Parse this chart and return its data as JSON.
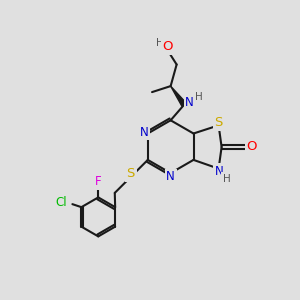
{
  "bg_color": "#e0e0e0",
  "bond_color": "#1a1a1a",
  "bond_width": 1.5,
  "atom_colors": {
    "N": "#0000cc",
    "S": "#ccaa00",
    "O": "#ff0000",
    "Cl": "#00bb00",
    "F": "#dd00dd",
    "C": "#1a1a1a",
    "H": "#555555"
  },
  "font_size": 8.5,
  "fig_size": [
    3.0,
    3.0
  ],
  "dpi": 100
}
